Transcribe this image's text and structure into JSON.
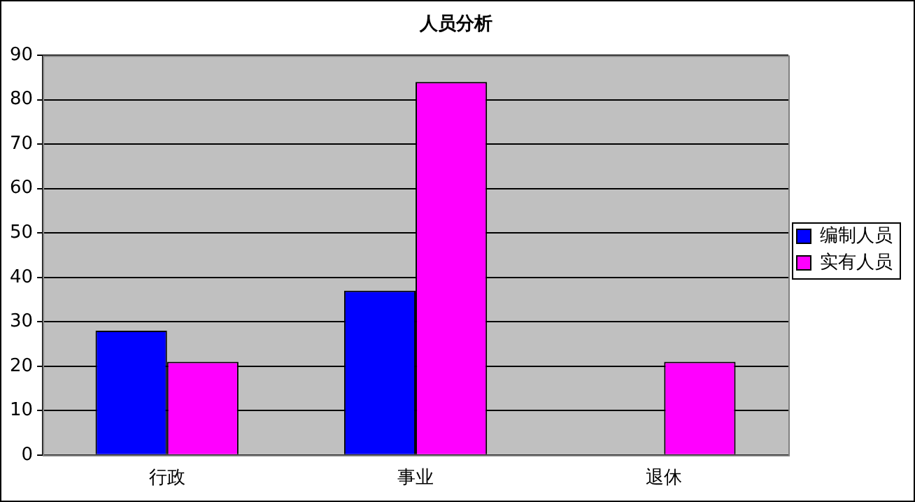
{
  "chart_data": {
    "type": "bar",
    "title": "人员分析",
    "categories": [
      "行政",
      "事业",
      "退休"
    ],
    "series": [
      {
        "name": "编制人员",
        "color": "#0000ff",
        "values": [
          28,
          37,
          null
        ]
      },
      {
        "name": "实有人员",
        "color": "#ff00ff",
        "values": [
          21,
          84,
          21
        ]
      }
    ],
    "ylim": [
      0,
      90
    ],
    "yticks": [
      0,
      10,
      20,
      30,
      40,
      50,
      60,
      70,
      80,
      90
    ],
    "grid": "y",
    "legend": "right"
  }
}
